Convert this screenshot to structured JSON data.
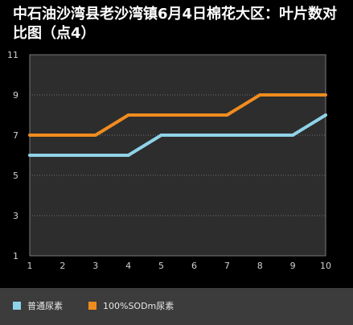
{
  "title": "中石油沙湾县老沙湾镇6月4日棉花大区：叶片数对比图（点4）",
  "chart_data": {
    "type": "line",
    "x": [
      1,
      2,
      3,
      4,
      5,
      6,
      7,
      8,
      9,
      10
    ],
    "series": [
      {
        "name": "普通尿素",
        "color": "#8fd3e8",
        "values": [
          6,
          6,
          6,
          6,
          7,
          7,
          7,
          7,
          7,
          8
        ]
      },
      {
        "name": "100%SODm尿素",
        "color": "#f08c1e",
        "values": [
          7,
          7,
          7,
          8,
          8,
          8,
          8,
          9,
          9,
          9
        ]
      }
    ],
    "xticks": [
      "1",
      "2",
      "3",
      "4",
      "5",
      "6",
      "7",
      "8",
      "9",
      "10"
    ],
    "yticks": [
      "1",
      "3",
      "5",
      "7",
      "9",
      "11"
    ],
    "ylim": [
      1,
      11
    ],
    "grid": true,
    "legend": "bottom-left",
    "background": "#2d2d2d",
    "grid_color": "#6e6e6e"
  }
}
